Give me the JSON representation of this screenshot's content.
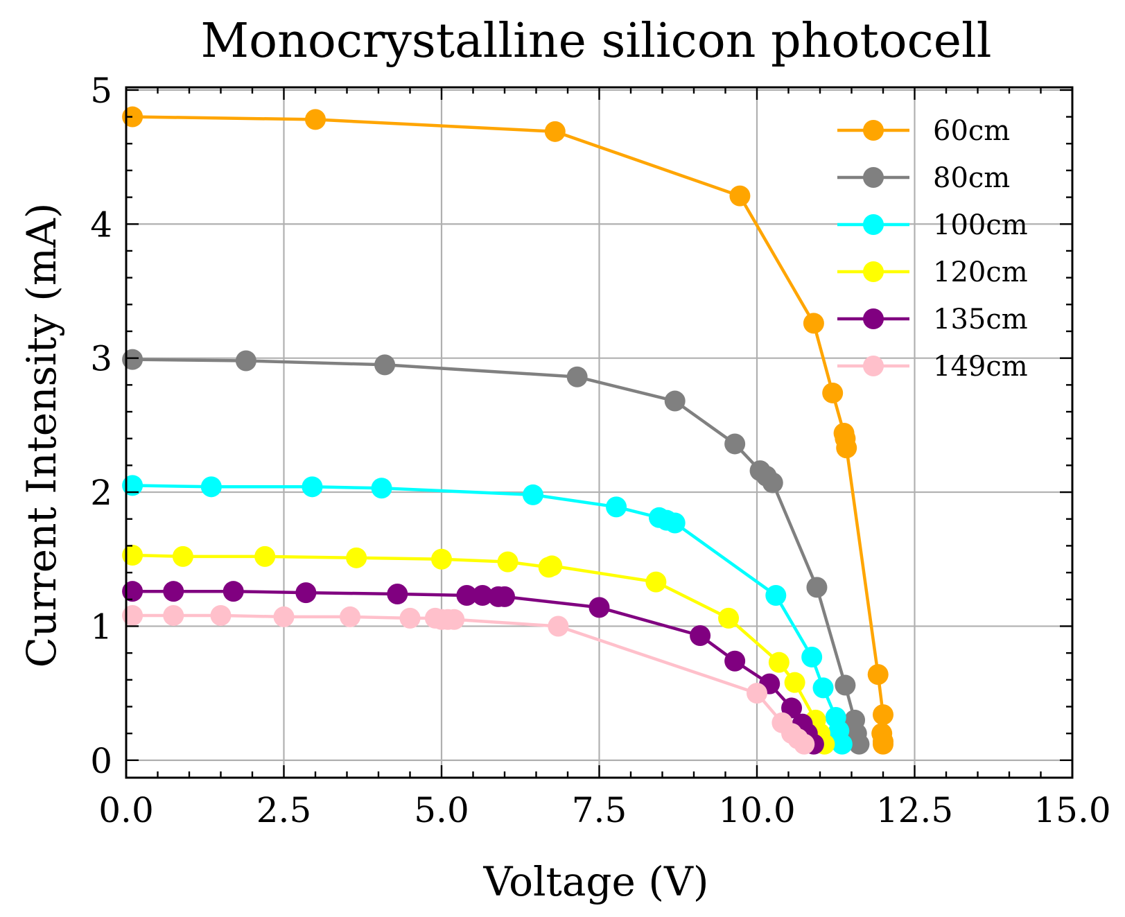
{
  "chart_data": {
    "type": "line",
    "title": "Monocrystalline silicon photocell",
    "xlabel": "Voltage (V)",
    "ylabel": "Current Intensity (mA)",
    "xlim": [
      0,
      15
    ],
    "ylim": [
      -0.13,
      5.02
    ],
    "xticks": [
      0,
      2.5,
      5,
      7.5,
      10,
      12.5,
      15
    ],
    "xtick_labels": [
      "0.0",
      "2.5",
      "5.0",
      "7.5",
      "10.0",
      "12.5",
      "15.0"
    ],
    "yticks": [
      0,
      1,
      2,
      3,
      4,
      5
    ],
    "ytick_labels": [
      "0",
      "1",
      "2",
      "3",
      "4",
      "5"
    ],
    "grid": true,
    "legend_position": "top-right",
    "series": [
      {
        "name": "60cm",
        "color": "#ffa500",
        "points": [
          [
            0.1,
            4.8
          ],
          [
            3.0,
            4.78
          ],
          [
            6.8,
            4.69
          ],
          [
            9.73,
            4.21
          ],
          [
            10.9,
            3.26
          ],
          [
            11.2,
            2.74
          ],
          [
            11.38,
            2.44
          ],
          [
            11.4,
            2.4
          ],
          [
            11.42,
            2.33
          ],
          [
            11.92,
            0.64
          ],
          [
            12.0,
            0.34
          ],
          [
            11.98,
            0.2
          ],
          [
            12.0,
            0.14
          ],
          [
            12.0,
            0.12
          ]
        ]
      },
      {
        "name": "80cm",
        "color": "#808080",
        "points": [
          [
            0.1,
            2.99
          ],
          [
            1.9,
            2.98
          ],
          [
            4.1,
            2.95
          ],
          [
            7.15,
            2.86
          ],
          [
            8.7,
            2.68
          ],
          [
            9.65,
            2.36
          ],
          [
            10.05,
            2.16
          ],
          [
            10.15,
            2.12
          ],
          [
            10.25,
            2.07
          ],
          [
            10.95,
            1.29
          ],
          [
            11.4,
            0.56
          ],
          [
            11.55,
            0.3
          ],
          [
            11.58,
            0.2
          ],
          [
            11.62,
            0.12
          ]
        ]
      },
      {
        "name": "100cm",
        "color": "#00ffff",
        "points": [
          [
            0.1,
            2.05
          ],
          [
            1.35,
            2.04
          ],
          [
            2.95,
            2.04
          ],
          [
            4.05,
            2.03
          ],
          [
            6.45,
            1.98
          ],
          [
            7.77,
            1.89
          ],
          [
            8.45,
            1.81
          ],
          [
            8.57,
            1.79
          ],
          [
            8.7,
            1.77
          ],
          [
            10.3,
            1.23
          ],
          [
            10.87,
            0.77
          ],
          [
            11.05,
            0.54
          ],
          [
            11.25,
            0.32
          ],
          [
            11.3,
            0.22
          ],
          [
            11.35,
            0.12
          ]
        ]
      },
      {
        "name": "120cm",
        "color": "#ffff00",
        "points": [
          [
            0.1,
            1.53
          ],
          [
            0.9,
            1.52
          ],
          [
            2.2,
            1.52
          ],
          [
            3.65,
            1.51
          ],
          [
            5.0,
            1.5
          ],
          [
            6.05,
            1.48
          ],
          [
            6.7,
            1.44
          ],
          [
            6.75,
            1.45
          ],
          [
            8.4,
            1.33
          ],
          [
            9.55,
            1.06
          ],
          [
            10.35,
            0.73
          ],
          [
            10.6,
            0.58
          ],
          [
            10.93,
            0.3
          ],
          [
            11.0,
            0.2
          ],
          [
            11.07,
            0.12
          ]
        ]
      },
      {
        "name": "135cm",
        "color": "#800080",
        "points": [
          [
            0.1,
            1.26
          ],
          [
            0.75,
            1.26
          ],
          [
            1.7,
            1.26
          ],
          [
            2.85,
            1.25
          ],
          [
            4.3,
            1.24
          ],
          [
            5.4,
            1.23
          ],
          [
            5.65,
            1.23
          ],
          [
            5.9,
            1.22
          ],
          [
            6.0,
            1.22
          ],
          [
            7.5,
            1.14
          ],
          [
            9.1,
            0.93
          ],
          [
            9.65,
            0.74
          ],
          [
            10.2,
            0.57
          ],
          [
            10.55,
            0.39
          ],
          [
            10.72,
            0.27
          ],
          [
            10.8,
            0.2
          ],
          [
            10.9,
            0.12
          ]
        ]
      },
      {
        "name": "149cm",
        "color": "#ffc0cb",
        "points": [
          [
            0.1,
            1.08
          ],
          [
            0.75,
            1.08
          ],
          [
            1.5,
            1.08
          ],
          [
            2.5,
            1.07
          ],
          [
            3.55,
            1.07
          ],
          [
            4.5,
            1.06
          ],
          [
            4.9,
            1.06
          ],
          [
            5.0,
            1.05
          ],
          [
            5.1,
            1.05
          ],
          [
            5.2,
            1.05
          ],
          [
            6.85,
            1.0
          ],
          [
            10.0,
            0.5
          ],
          [
            10.4,
            0.28
          ],
          [
            10.55,
            0.2
          ],
          [
            10.65,
            0.16
          ],
          [
            10.75,
            0.12
          ]
        ]
      }
    ]
  }
}
